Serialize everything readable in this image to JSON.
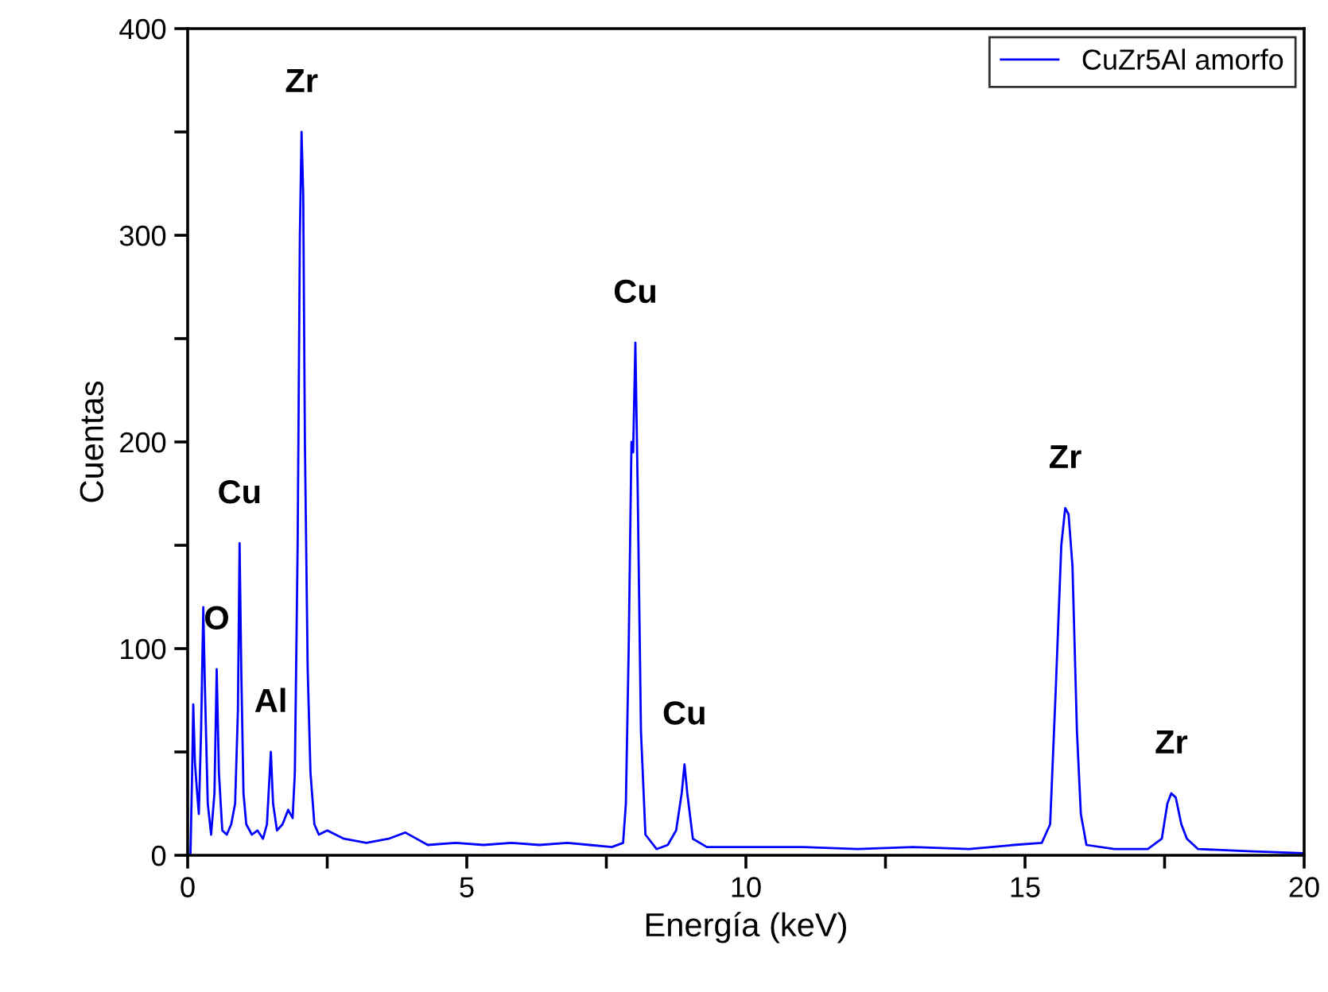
{
  "chart_data": {
    "type": "line",
    "xlabel": "Energía (keV)",
    "ylabel": "Cuentas",
    "xlim": [
      0,
      20
    ],
    "ylim": [
      0,
      400
    ],
    "xticks": [
      0,
      {
        "value": 2.5,
        "label": null
      },
      5,
      {
        "value": 7.5,
        "label": null
      },
      10,
      {
        "value": 12.5,
        "label": null
      },
      15,
      {
        "value": 17.5,
        "label": null
      },
      20
    ],
    "yticks": [
      0,
      {
        "value": 50,
        "label": null
      },
      100,
      {
        "value": 150,
        "label": null
      },
      200,
      {
        "value": 250,
        "label": null
      },
      300,
      {
        "value": 350,
        "label": null
      },
      400
    ],
    "grid": false,
    "legend": "top right",
    "marker": "none",
    "line_style": "solid",
    "series": [
      {
        "name": "CuZr5Al amorfo",
        "color": "#0000ff",
        "x": [
          0,
          0.05,
          0.08,
          0.1,
          0.13,
          0.17,
          0.2,
          0.24,
          0.28,
          0.31,
          0.36,
          0.42,
          0.48,
          0.52,
          0.56,
          0.62,
          0.7,
          0.78,
          0.85,
          0.9,
          0.93,
          0.96,
          1.0,
          1.05,
          1.15,
          1.25,
          1.35,
          1.42,
          1.49,
          1.53,
          1.6,
          1.7,
          1.8,
          1.88,
          1.92,
          1.97,
          2.01,
          2.04,
          2.07,
          2.1,
          2.15,
          2.2,
          2.27,
          2.35,
          2.5,
          2.8,
          3.2,
          3.6,
          3.9,
          4.3,
          4.8,
          5.3,
          5.8,
          6.3,
          6.8,
          7.2,
          7.6,
          7.8,
          7.85,
          7.9,
          7.95,
          7.98,
          8.02,
          8.06,
          8.12,
          8.2,
          8.4,
          8.6,
          8.75,
          8.85,
          8.9,
          8.95,
          9.05,
          9.3,
          10,
          11,
          12,
          13,
          14,
          14.8,
          15.3,
          15.45,
          15.55,
          15.65,
          15.72,
          15.78,
          15.85,
          15.93,
          16.0,
          16.1,
          16.6,
          17.2,
          17.45,
          17.55,
          17.62,
          17.7,
          17.8,
          17.9,
          18.1,
          19,
          20
        ],
        "values": [
          0,
          0,
          40,
          73,
          45,
          30,
          20,
          60,
          120,
          80,
          25,
          10,
          30,
          90,
          40,
          12,
          10,
          15,
          25,
          70,
          151,
          90,
          30,
          15,
          10,
          12,
          8,
          15,
          50,
          25,
          12,
          15,
          22,
          18,
          40,
          150,
          300,
          350,
          320,
          200,
          90,
          40,
          15,
          10,
          12,
          8,
          6,
          8,
          11,
          5,
          6,
          5,
          6,
          5,
          6,
          5,
          4,
          6,
          25,
          100,
          200,
          195,
          248,
          180,
          60,
          10,
          3,
          5,
          12,
          30,
          44,
          30,
          8,
          4,
          4,
          4,
          3,
          4,
          3,
          5,
          6,
          15,
          80,
          150,
          168,
          165,
          140,
          60,
          20,
          5,
          3,
          3,
          8,
          25,
          30,
          28,
          15,
          8,
          3,
          2,
          1
        ]
      }
    ],
    "annotations": [
      {
        "text": "Zr",
        "x": 2.04,
        "y": 350
      },
      {
        "text": "Cu",
        "x": 0.93,
        "y": 151
      },
      {
        "text": "O",
        "x": 0.52,
        "y": 90
      },
      {
        "text": "Al",
        "x": 1.49,
        "y": 50
      },
      {
        "text": "Cu",
        "x": 8.02,
        "y": 248
      },
      {
        "text": "Cu",
        "x": 8.9,
        "y": 44
      },
      {
        "text": "Zr",
        "x": 15.72,
        "y": 168
      },
      {
        "text": "Zr",
        "x": 17.62,
        "y": 30
      }
    ]
  }
}
